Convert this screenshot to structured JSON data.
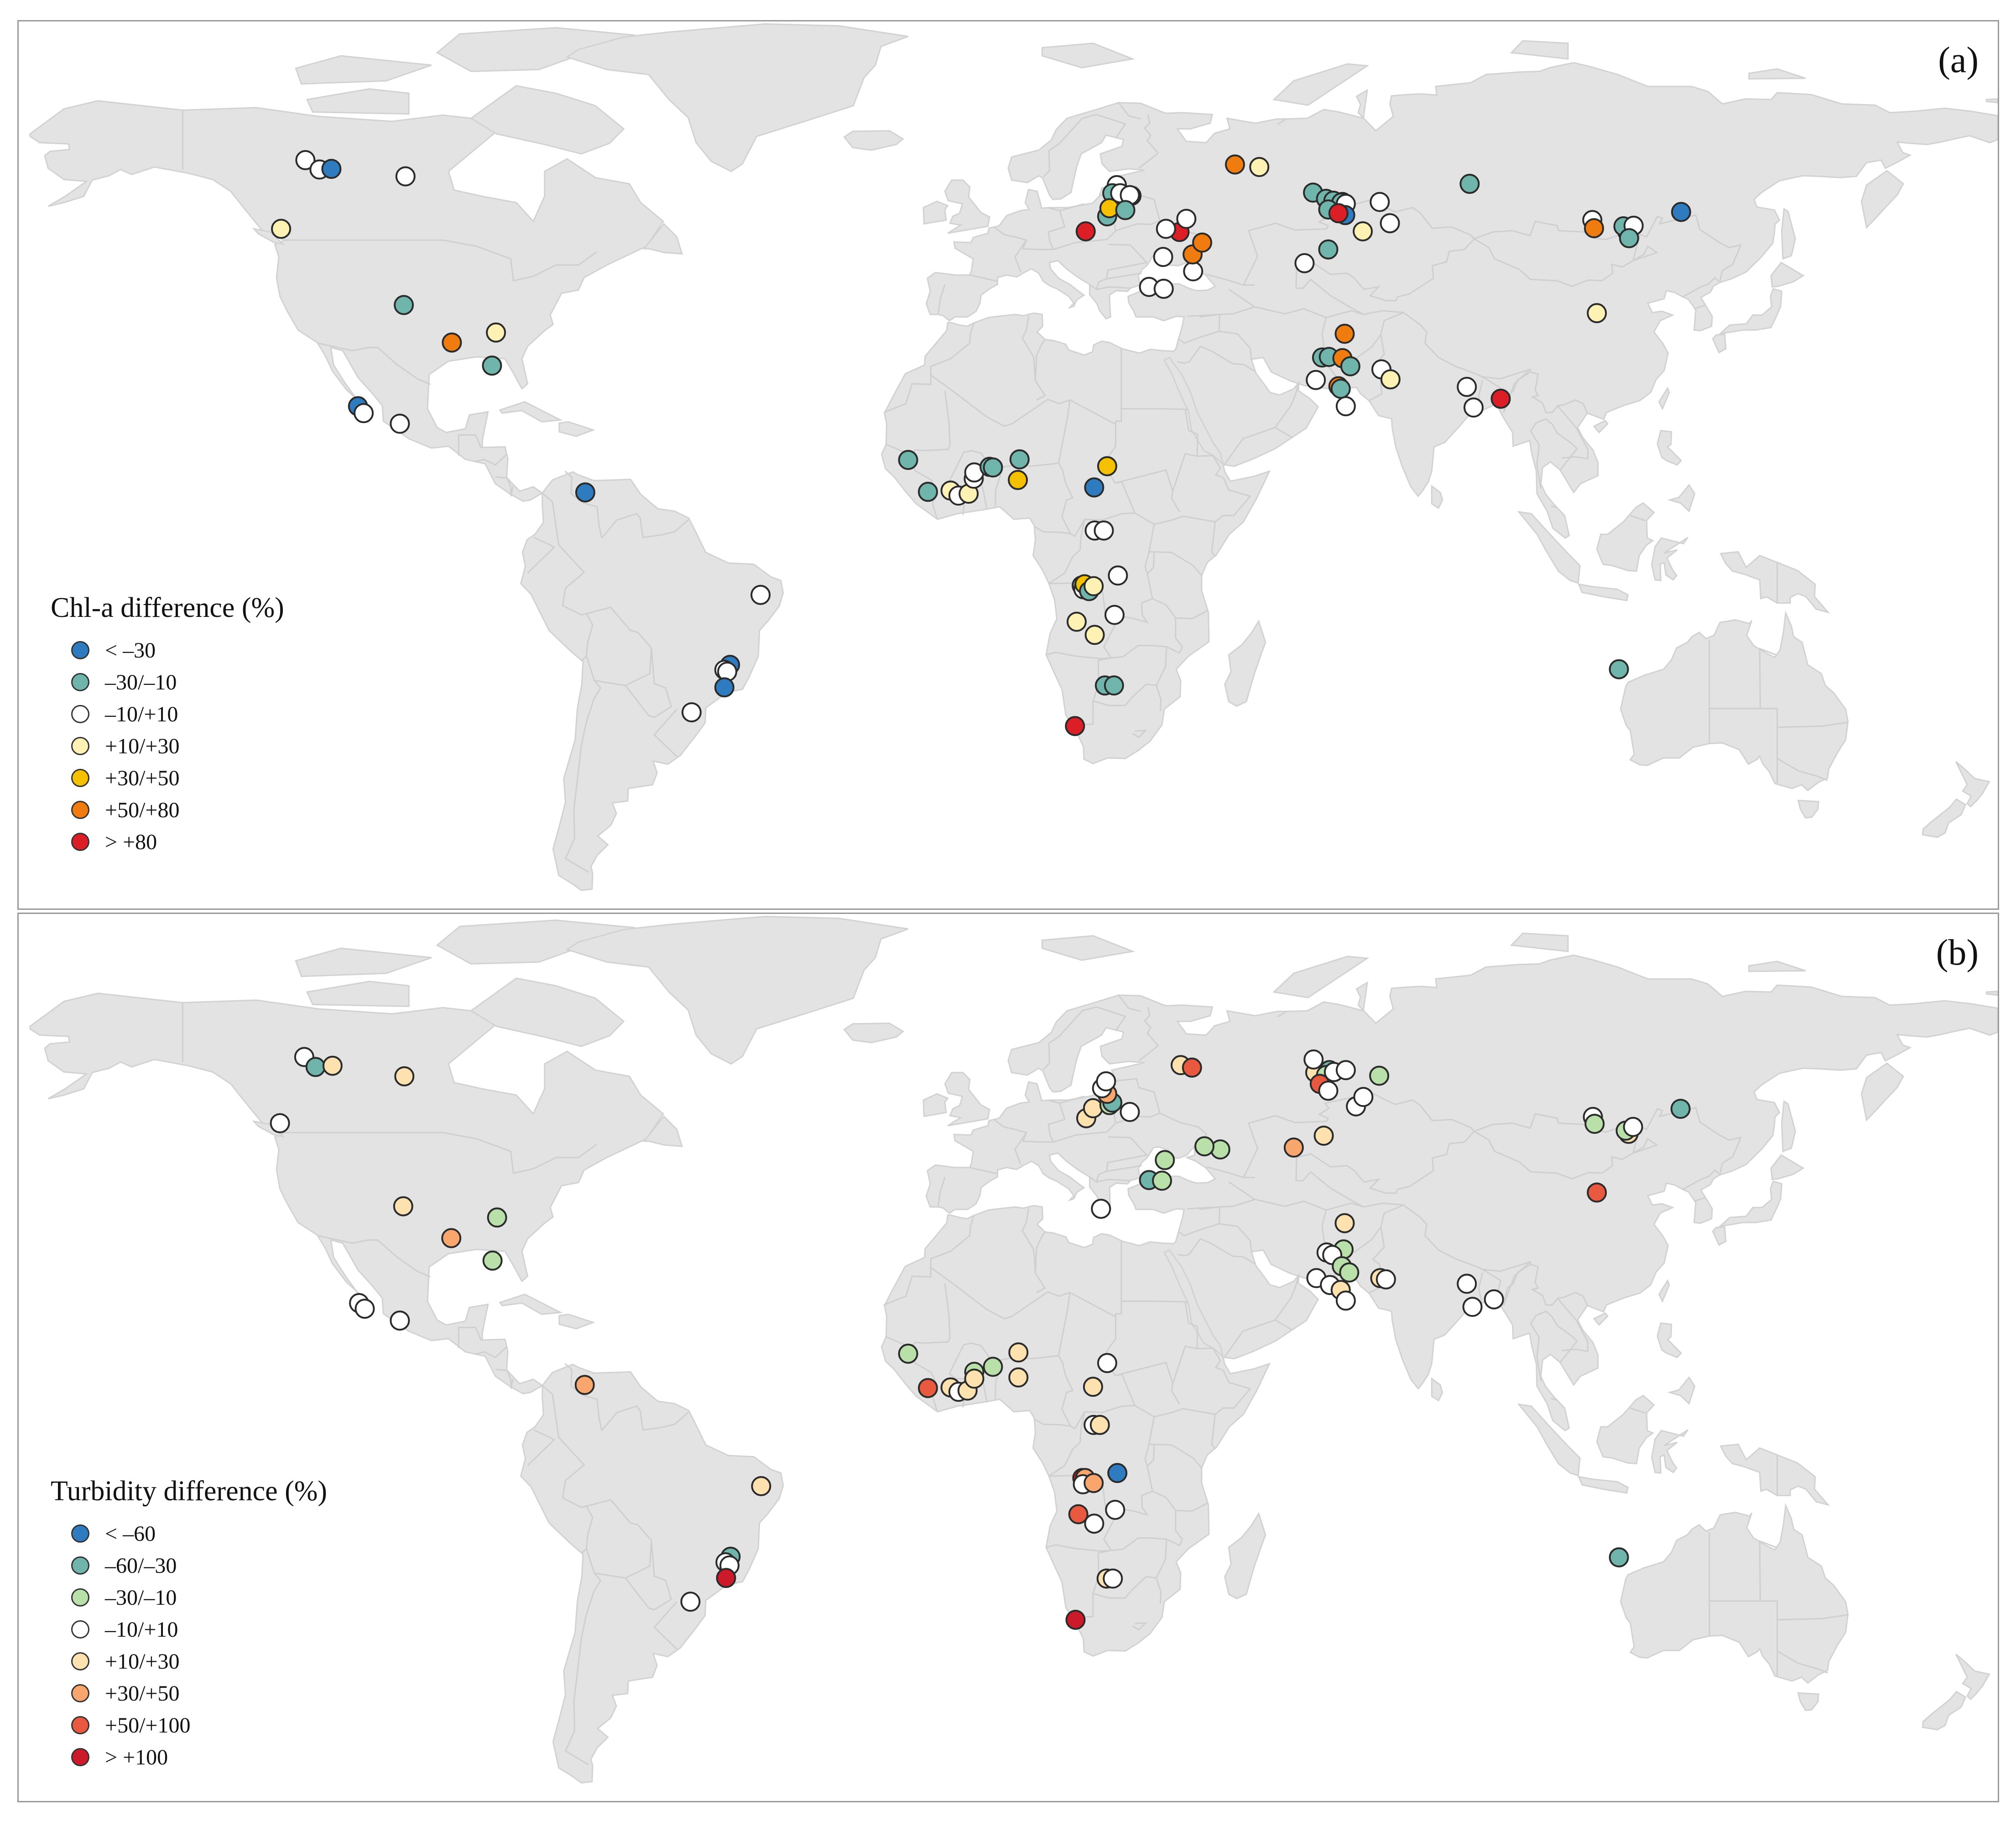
{
  "panels": [
    {
      "label": "(a)",
      "legend_title": "Chl-a difference (%)",
      "classes": [
        {
          "label": "< –30",
          "color": "#2f7bbf"
        },
        {
          "label": "–30/–10",
          "color": "#6fb5ab"
        },
        {
          "label": "–10/+10",
          "color": "#ffffff"
        },
        {
          "label": "+10/+30",
          "color": "#fdf2b3"
        },
        {
          "label": "+30/+50",
          "color": "#f5c000"
        },
        {
          "label": "+50/+80",
          "color": "#f07c10"
        },
        {
          "label": "> +80",
          "color": "#dc1f26"
        }
      ],
      "sites": [
        {
          "lon": -119.3,
          "lat": 61.8,
          "c": 2
        },
        {
          "lon": -116.8,
          "lat": 60.3,
          "c": 2
        },
        {
          "lon": -114.7,
          "lat": 60.4,
          "c": 0
        },
        {
          "lon": -101.6,
          "lat": 59.2,
          "c": 2
        },
        {
          "lon": -123.6,
          "lat": 50.8,
          "c": 3
        },
        {
          "lon": -101.9,
          "lat": 38.6,
          "c": 1
        },
        {
          "lon": -93.4,
          "lat": 32.6,
          "c": 5
        },
        {
          "lon": -85.6,
          "lat": 34.2,
          "c": 3
        },
        {
          "lon": -86.3,
          "lat": 28.9,
          "c": 1
        },
        {
          "lon": -110.0,
          "lat": 22.4,
          "c": 0
        },
        {
          "lon": -109.0,
          "lat": 21.3,
          "c": 2
        },
        {
          "lon": -102.6,
          "lat": 19.6,
          "c": 2
        },
        {
          "lon": -69.8,
          "lat": 8.6,
          "c": 0
        },
        {
          "lon": -38.8,
          "lat": -7.8,
          "c": 2
        },
        {
          "lon": -44.2,
          "lat": -19.0,
          "c": 0
        },
        {
          "lon": -45.2,
          "lat": -19.8,
          "c": 2
        },
        {
          "lon": -44.7,
          "lat": -20.1,
          "c": 2
        },
        {
          "lon": -45.2,
          "lat": -22.6,
          "c": 0
        },
        {
          "lon": -51.0,
          "lat": -26.6,
          "c": 2
        },
        {
          "lon": -12.7,
          "lat": 13.8,
          "c": 1
        },
        {
          "lon": -9.2,
          "lat": 8.7,
          "c": 1
        },
        {
          "lon": -5.2,
          "lat": 8.9,
          "c": 3
        },
        {
          "lon": -3.8,
          "lat": 8.1,
          "c": 2
        },
        {
          "lon": -2.0,
          "lat": 8.4,
          "c": 3
        },
        {
          "lon": -1.1,
          "lat": 10.8,
          "c": 2
        },
        {
          "lon": -1.0,
          "lat": 11.8,
          "c": 2
        },
        {
          "lon": 1.7,
          "lat": 12.7,
          "c": 1
        },
        {
          "lon": 2.3,
          "lat": 12.6,
          "c": 1
        },
        {
          "lon": 7.0,
          "lat": 13.9,
          "c": 1
        },
        {
          "lon": 6.7,
          "lat": 10.6,
          "c": 4
        },
        {
          "lon": 20.2,
          "lat": 9.4,
          "c": 0
        },
        {
          "lon": 22.5,
          "lat": 12.8,
          "c": 4
        },
        {
          "lon": 20.3,
          "lat": 2.5,
          "c": 2
        },
        {
          "lon": 21.9,
          "lat": 2.5,
          "c": 2
        },
        {
          "lon": 24.4,
          "lat": -4.7,
          "c": 2
        },
        {
          "lon": 18.0,
          "lat": -6.3,
          "c": 1
        },
        {
          "lon": 18.3,
          "lat": -6.9,
          "c": 2
        },
        {
          "lon": 18.5,
          "lat": -6.1,
          "c": 4
        },
        {
          "lon": 19.3,
          "lat": -7.2,
          "c": 1
        },
        {
          "lon": 20.1,
          "lat": -6.4,
          "c": 3
        },
        {
          "lon": 17.1,
          "lat": -12.1,
          "c": 3
        },
        {
          "lon": 20.3,
          "lat": -14.2,
          "c": 3
        },
        {
          "lon": 23.8,
          "lat": -11.0,
          "c": 2
        },
        {
          "lon": 22.1,
          "lat": -22.3,
          "c": 1
        },
        {
          "lon": 23.7,
          "lat": -22.3,
          "c": 1
        },
        {
          "lon": 16.8,
          "lat": -28.8,
          "c": 6
        },
        {
          "lon": 29.9,
          "lat": 41.5,
          "c": 2
        },
        {
          "lon": 32.5,
          "lat": 41.2,
          "c": 2
        },
        {
          "lon": 32.4,
          "lat": 46.3,
          "c": 2
        },
        {
          "lon": 37.7,
          "lat": 44.0,
          "c": 2
        },
        {
          "lon": 37.6,
          "lat": 46.7,
          "c": 5
        },
        {
          "lon": 35.3,
          "lat": 50.3,
          "c": 6
        },
        {
          "lon": 24.2,
          "lat": 57.8,
          "c": 2
        },
        {
          "lon": 23.4,
          "lat": 56.5,
          "c": 1
        },
        {
          "lon": 24.8,
          "lat": 56.5,
          "c": 2
        },
        {
          "lon": 26.8,
          "lat": 56.1,
          "c": 1
        },
        {
          "lon": 26.5,
          "lat": 56.2,
          "c": 2
        },
        {
          "lon": 22.5,
          "lat": 52.8,
          "c": 1
        },
        {
          "lon": 22.9,
          "lat": 54.1,
          "c": 4
        },
        {
          "lon": 18.7,
          "lat": 50.4,
          "c": 6
        },
        {
          "lon": 25.7,
          "lat": 53.8,
          "c": 1
        },
        {
          "lon": 45.1,
          "lat": 61.1,
          "c": 5
        },
        {
          "lon": 49.4,
          "lat": 60.7,
          "c": 3
        },
        {
          "lon": 39.3,
          "lat": 48.6,
          "c": 5
        },
        {
          "lon": 32.9,
          "lat": 50.8,
          "c": 2
        },
        {
          "lon": 36.5,
          "lat": 52.4,
          "c": 2
        },
        {
          "lon": 58.9,
          "lat": 56.6,
          "c": 1
        },
        {
          "lon": 61.2,
          "lat": 55.6,
          "c": 1
        },
        {
          "lon": 62.5,
          "lat": 55.3,
          "c": 1
        },
        {
          "lon": 64.1,
          "lat": 55.1,
          "c": 4
        },
        {
          "lon": 63.9,
          "lat": 55.0,
          "c": 1
        },
        {
          "lon": 64.7,
          "lat": 54.8,
          "c": 2
        },
        {
          "lon": 64.6,
          "lat": 53.0,
          "c": 0
        },
        {
          "lon": 61.6,
          "lat": 53.9,
          "c": 1
        },
        {
          "lon": 63.4,
          "lat": 53.3,
          "c": 6
        },
        {
          "lon": 70.7,
          "lat": 55.1,
          "c": 2
        },
        {
          "lon": 72.5,
          "lat": 51.7,
          "c": 2
        },
        {
          "lon": 67.7,
          "lat": 50.4,
          "c": 3
        },
        {
          "lon": 61.6,
          "lat": 47.5,
          "c": 1
        },
        {
          "lon": 57.4,
          "lat": 45.3,
          "c": 2
        },
        {
          "lon": 86.6,
          "lat": 58.0,
          "c": 1
        },
        {
          "lon": 64.5,
          "lat": 34.0,
          "c": 5
        },
        {
          "lon": 60.5,
          "lat": 30.2,
          "c": 1
        },
        {
          "lon": 61.7,
          "lat": 30.3,
          "c": 1
        },
        {
          "lon": 64.1,
          "lat": 30.1,
          "c": 5
        },
        {
          "lon": 65.5,
          "lat": 28.8,
          "c": 1
        },
        {
          "lon": 59.4,
          "lat": 26.6,
          "c": 2
        },
        {
          "lon": 63.4,
          "lat": 25.6,
          "c": 5
        },
        {
          "lon": 63.8,
          "lat": 25.2,
          "c": 1
        },
        {
          "lon": 64.7,
          "lat": 22.4,
          "c": 2
        },
        {
          "lon": 71.0,
          "lat": 28.3,
          "c": 2
        },
        {
          "lon": 72.6,
          "lat": 26.7,
          "c": 3
        },
        {
          "lon": 86.1,
          "lat": 25.5,
          "c": 2
        },
        {
          "lon": 87.3,
          "lat": 22.2,
          "c": 2
        },
        {
          "lon": 92.1,
          "lat": 23.6,
          "c": 6
        },
        {
          "lon": 108.3,
          "lat": 52.2,
          "c": 2
        },
        {
          "lon": 108.6,
          "lat": 50.9,
          "c": 5
        },
        {
          "lon": 114.5,
          "lat": 50.3,
          "c": 2
        },
        {
          "lon": 113.8,
          "lat": 51.2,
          "c": 1
        },
        {
          "lon": 115.6,
          "lat": 51.3,
          "c": 2
        },
        {
          "lon": 114.8,
          "lat": 49.3,
          "c": 1
        },
        {
          "lon": 124.0,
          "lat": 53.5,
          "c": 0
        },
        {
          "lon": 109.1,
          "lat": 37.3,
          "c": 3
        },
        {
          "lon": 113.0,
          "lat": -19.7,
          "c": 1
        }
      ]
    },
    {
      "label": "(b)",
      "legend_title": "Turbidity difference (%)",
      "classes": [
        {
          "label": "< –60",
          "color": "#2f7bbf"
        },
        {
          "label": "–60/–30",
          "color": "#6fb5ab"
        },
        {
          "label": "–30/–10",
          "color": "#b8e0a8"
        },
        {
          "label": "–10/+10",
          "color": "#ffffff"
        },
        {
          "label": "+10/+30",
          "color": "#fde2b0"
        },
        {
          "label": "+30/+50",
          "color": "#f9a66e"
        },
        {
          "label": "+50/+100",
          "color": "#e8593f"
        },
        {
          "label": "> +100",
          "color": "#cc1a2a"
        }
      ],
      "sites": [
        {
          "lon": -119.5,
          "lat": 61.1,
          "c": 3
        },
        {
          "lon": -117.5,
          "lat": 59.5,
          "c": 1
        },
        {
          "lon": -114.5,
          "lat": 59.7,
          "c": 4
        },
        {
          "lon": -101.8,
          "lat": 58.0,
          "c": 4
        },
        {
          "lon": -123.8,
          "lat": 50.5,
          "c": 3
        },
        {
          "lon": -102.0,
          "lat": 37.2,
          "c": 4
        },
        {
          "lon": -93.5,
          "lat": 32.1,
          "c": 5
        },
        {
          "lon": -85.4,
          "lat": 35.4,
          "c": 2
        },
        {
          "lon": -86.2,
          "lat": 28.5,
          "c": 2
        },
        {
          "lon": -109.8,
          "lat": 21.7,
          "c": 3
        },
        {
          "lon": -108.8,
          "lat": 20.8,
          "c": 3
        },
        {
          "lon": -102.6,
          "lat": 18.9,
          "c": 3
        },
        {
          "lon": -69.9,
          "lat": 8.6,
          "c": 5
        },
        {
          "lon": -38.7,
          "lat": -7.6,
          "c": 4
        },
        {
          "lon": -44.1,
          "lat": -18.9,
          "c": 1
        },
        {
          "lon": -45.0,
          "lat": -19.8,
          "c": 3
        },
        {
          "lon": -44.3,
          "lat": -20.3,
          "c": 3
        },
        {
          "lon": -44.9,
          "lat": -22.3,
          "c": 7
        },
        {
          "lon": -51.2,
          "lat": -26.1,
          "c": 3
        },
        {
          "lon": -12.7,
          "lat": 13.6,
          "c": 2
        },
        {
          "lon": -9.2,
          "lat": 8.1,
          "c": 6
        },
        {
          "lon": -5.2,
          "lat": 8.2,
          "c": 4
        },
        {
          "lon": -3.8,
          "lat": 7.5,
          "c": 3
        },
        {
          "lon": -2.2,
          "lat": 7.7,
          "c": 4
        },
        {
          "lon": -1.0,
          "lat": 10.7,
          "c": 2
        },
        {
          "lon": -1.0,
          "lat": 9.6,
          "c": 4
        },
        {
          "lon": 2.3,
          "lat": 11.5,
          "c": 2
        },
        {
          "lon": 6.8,
          "lat": 13.8,
          "c": 4
        },
        {
          "lon": 6.8,
          "lat": 9.8,
          "c": 4
        },
        {
          "lon": 20.0,
          "lat": 8.3,
          "c": 4
        },
        {
          "lon": 22.5,
          "lat": 12.1,
          "c": 3
        },
        {
          "lon": 20.1,
          "lat": 2.2,
          "c": 3
        },
        {
          "lon": 21.2,
          "lat": 2.2,
          "c": 4
        },
        {
          "lon": 24.3,
          "lat": -5.5,
          "c": 0
        },
        {
          "lon": 18.1,
          "lat": -6.3,
          "c": 7
        },
        {
          "lon": 18.6,
          "lat": -6.3,
          "c": 5
        },
        {
          "lon": 18.2,
          "lat": -7.3,
          "c": 3
        },
        {
          "lon": 20.1,
          "lat": -7.1,
          "c": 5
        },
        {
          "lon": 17.4,
          "lat": -12.1,
          "c": 6
        },
        {
          "lon": 20.2,
          "lat": -13.6,
          "c": 3
        },
        {
          "lon": 23.9,
          "lat": -11.4,
          "c": 3
        },
        {
          "lon": 22.4,
          "lat": -22.4,
          "c": 4
        },
        {
          "lon": 23.5,
          "lat": -22.4,
          "c": 3
        },
        {
          "lon": 16.9,
          "lat": -29.0,
          "c": 7
        },
        {
          "lon": 29.9,
          "lat": 41.4,
          "c": 1
        },
        {
          "lon": 32.2,
          "lat": 41.3,
          "c": 2
        },
        {
          "lon": 32.7,
          "lat": 44.6,
          "c": 2
        },
        {
          "lon": 21.4,
          "lat": 36.8,
          "c": 3
        },
        {
          "lon": 18.8,
          "lat": 51.3,
          "c": 4
        },
        {
          "lon": 20.0,
          "lat": 52.9,
          "c": 4
        },
        {
          "lon": 22.9,
          "lat": 53.4,
          "c": 2
        },
        {
          "lon": 23.4,
          "lat": 53.8,
          "c": 1
        },
        {
          "lon": 22.5,
          "lat": 55.2,
          "c": 5
        },
        {
          "lon": 21.6,
          "lat": 56.1,
          "c": 3
        },
        {
          "lon": 22.3,
          "lat": 57.2,
          "c": 3
        },
        {
          "lon": 26.5,
          "lat": 52.3,
          "c": 3
        },
        {
          "lon": 35.5,
          "lat": 59.8,
          "c": 4
        },
        {
          "lon": 37.5,
          "lat": 59.4,
          "c": 6
        },
        {
          "lon": 59.3,
          "lat": 58.6,
          "c": 4
        },
        {
          "lon": 59.0,
          "lat": 60.7,
          "c": 3
        },
        {
          "lon": 61.8,
          "lat": 59.0,
          "c": 1
        },
        {
          "lon": 61.2,
          "lat": 58.2,
          "c": 2
        },
        {
          "lon": 62.6,
          "lat": 58.7,
          "c": 3
        },
        {
          "lon": 64.7,
          "lat": 59.0,
          "c": 3
        },
        {
          "lon": 60.1,
          "lat": 56.8,
          "c": 6
        },
        {
          "lon": 61.6,
          "lat": 55.7,
          "c": 3
        },
        {
          "lon": 70.6,
          "lat": 58.1,
          "c": 2
        },
        {
          "lon": 66.5,
          "lat": 53.2,
          "c": 3
        },
        {
          "lon": 67.8,
          "lat": 54.7,
          "c": 3
        },
        {
          "lon": 60.8,
          "lat": 48.5,
          "c": 4
        },
        {
          "lon": 55.5,
          "lat": 46.6,
          "c": 5
        },
        {
          "lon": 42.5,
          "lat": 46.3,
          "c": 2
        },
        {
          "lon": 39.7,
          "lat": 46.8,
          "c": 2
        },
        {
          "lon": 64.5,
          "lat": 34.5,
          "c": 4
        },
        {
          "lon": 61.3,
          "lat": 29.8,
          "c": 3
        },
        {
          "lon": 64.3,
          "lat": 30.3,
          "c": 2
        },
        {
          "lon": 62.3,
          "lat": 29.4,
          "c": 3
        },
        {
          "lon": 64.0,
          "lat": 27.6,
          "c": 2
        },
        {
          "lon": 65.3,
          "lat": 26.6,
          "c": 2
        },
        {
          "lon": 59.5,
          "lat": 25.7,
          "c": 3
        },
        {
          "lon": 61.9,
          "lat": 24.6,
          "c": 3
        },
        {
          "lon": 63.8,
          "lat": 23.8,
          "c": 4
        },
        {
          "lon": 64.7,
          "lat": 22.1,
          "c": 3
        },
        {
          "lon": 70.8,
          "lat": 25.7,
          "c": 4
        },
        {
          "lon": 71.8,
          "lat": 25.5,
          "c": 3
        },
        {
          "lon": 86.1,
          "lat": 24.8,
          "c": 3
        },
        {
          "lon": 87.1,
          "lat": 21.1,
          "c": 3
        },
        {
          "lon": 90.9,
          "lat": 22.3,
          "c": 3
        },
        {
          "lon": 108.4,
          "lat": 51.5,
          "c": 3
        },
        {
          "lon": 108.7,
          "lat": 50.4,
          "c": 2
        },
        {
          "lon": 114.7,
          "lat": 48.8,
          "c": 4
        },
        {
          "lon": 114.2,
          "lat": 49.3,
          "c": 2
        },
        {
          "lon": 115.5,
          "lat": 49.9,
          "c": 3
        },
        {
          "lon": 123.9,
          "lat": 52.8,
          "c": 1
        },
        {
          "lon": 109.1,
          "lat": 39.4,
          "c": 6
        },
        {
          "lon": 113.0,
          "lat": -19.0,
          "c": 1
        }
      ]
    }
  ]
}
